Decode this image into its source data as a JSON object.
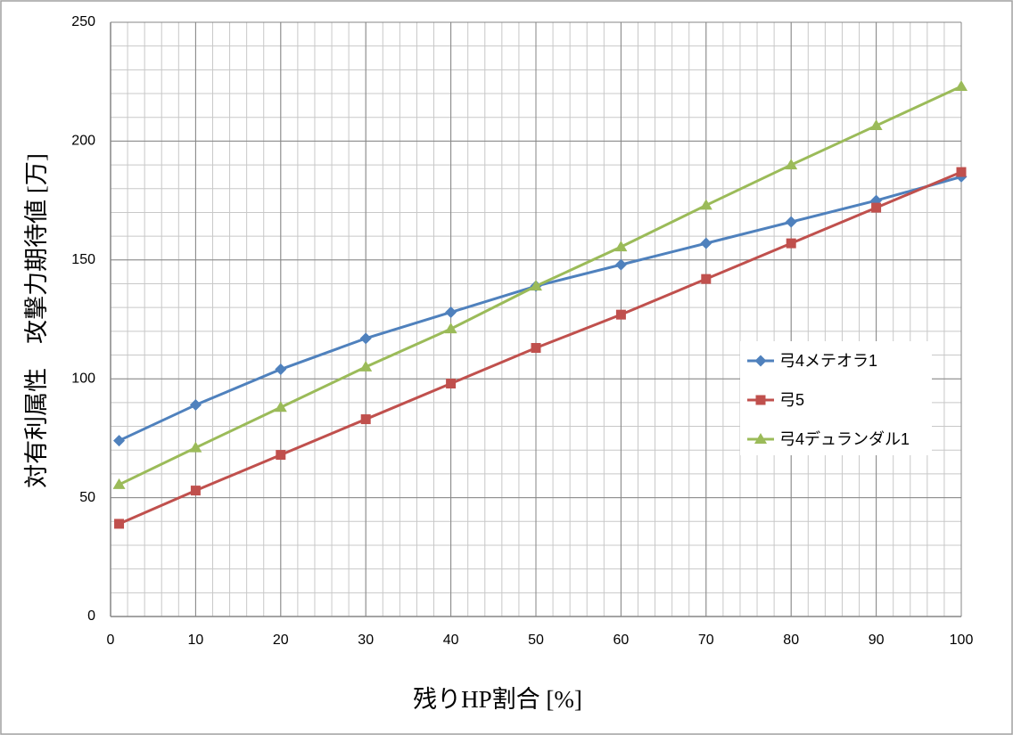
{
  "chart_data": {
    "type": "line",
    "x_label": "残りHP割合 [%]",
    "y_label": "対有利属性　攻撃力期待値 [万]",
    "x": [
      1,
      10,
      20,
      30,
      40,
      50,
      60,
      70,
      80,
      90,
      100
    ],
    "series": [
      {
        "name": "弓4メテオラ1",
        "color": "#4f81bd",
        "marker": "diamond",
        "values": [
          74,
          89,
          104,
          117,
          128,
          139,
          148,
          157,
          166,
          175,
          185
        ]
      },
      {
        "name": "弓5",
        "color": "#c0504d",
        "marker": "square",
        "values": [
          39,
          53,
          68,
          83,
          98,
          113,
          127,
          142,
          157,
          172,
          187
        ]
      },
      {
        "name": "弓4デュランダル1",
        "color": "#9bbb59",
        "marker": "triangle",
        "values": [
          55.5,
          71,
          88,
          105,
          121,
          139,
          155.5,
          173,
          190,
          206.5,
          223
        ]
      }
    ],
    "xlim": [
      0,
      100
    ],
    "ylim": [
      0,
      250
    ],
    "xticks": [
      0,
      10,
      20,
      30,
      40,
      50,
      60,
      70,
      80,
      90,
      100
    ],
    "yticks": [
      0,
      50,
      100,
      150,
      200,
      250
    ],
    "grid": true,
    "minor_grid": {
      "x": 2,
      "y": 10
    },
    "legend": "right"
  }
}
